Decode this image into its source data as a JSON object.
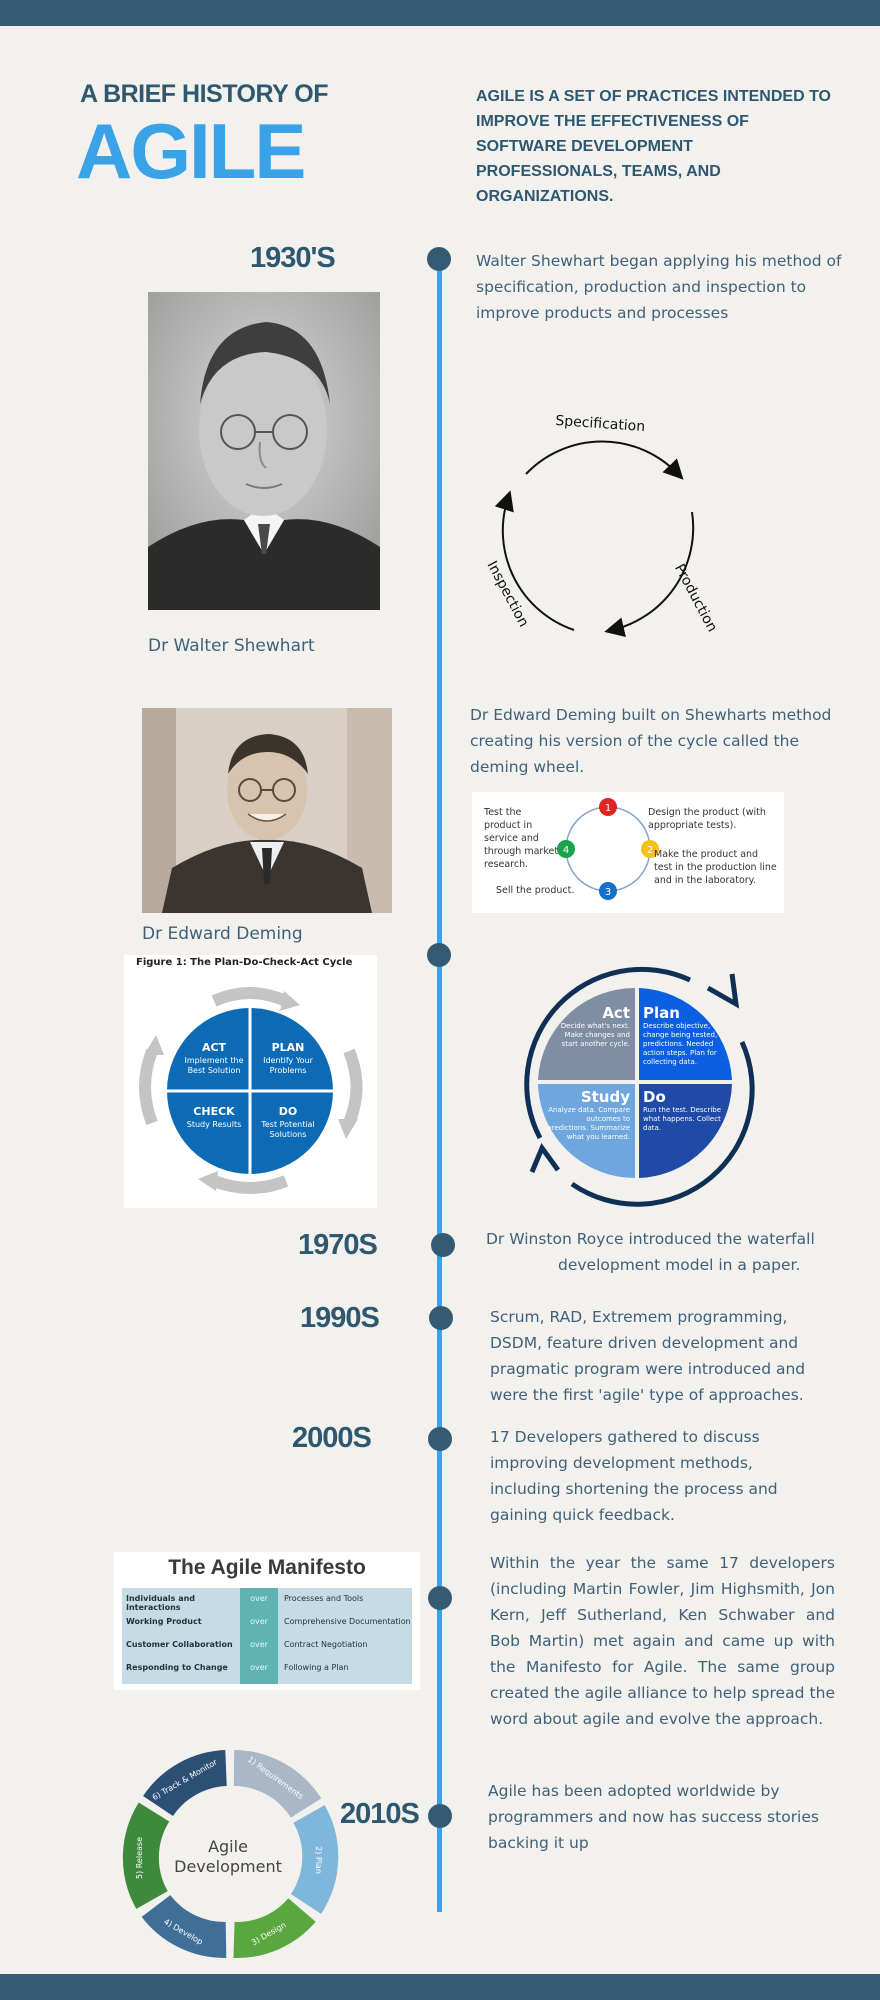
{
  "header": {
    "pre_title": "A BRIEF HISTORY OF",
    "title": "AGILE",
    "intro": "AGILE IS A SET OF PRACTICES INTENDED TO IMPROVE THE EFFECTIVENESS OF SOFTWARE DEVELOPMENT PROFESSIONALS, TEAMS, AND ORGANIZATIONS."
  },
  "timeline": {
    "e1930": {
      "year": "1930'S",
      "text": "Walter Shewhart began applying his method of specification, production and inspection to improve products and processes",
      "caption": "Dr Walter Shewhart",
      "cycle": {
        "spec": "Specification",
        "prod": "Production",
        "insp": "Inspection"
      }
    },
    "deming": {
      "text": "Dr Edward Deming built on Shewharts method creating his version of the cycle called the deming wheel.",
      "caption": "Dr Edward Deming",
      "wheel": {
        "s1": "Design the product (with appropriate tests).",
        "s2": "Make the product and test in the production line and in the laboratory.",
        "s3": "Sell the product.",
        "s4": "Test the product in service and through market research.",
        "n1": "1",
        "n2": "2",
        "n3": "3",
        "n4": "4"
      }
    },
    "pdca_left": {
      "figure_title": "Figure 1: The Plan-Do-Check-Act Cycle",
      "act": "ACT",
      "act_sub": "Implement the Best Solution",
      "plan": "PLAN",
      "plan_sub": "Identify Your Problems",
      "check": "CHECK",
      "check_sub": "Study Results",
      "do": "DO",
      "do_sub": "Test Potential Solutions"
    },
    "pdsa_right": {
      "act": "Act",
      "act_desc": "Decide what's next. Make changes and start another cycle.",
      "plan": "Plan",
      "plan_desc": "Describe objective, change being tested, predictions. Needed action steps. Plan for collecting data.",
      "study": "Study",
      "study_desc": "Analyze data. Compare outcomes to predictions. Summarize what you learned.",
      "do": "Do",
      "do_desc": "Run the test. Describe what happens. Collect data."
    },
    "e1970": {
      "year": "1970S",
      "text_1": "Dr Winston Royce introduced the waterfall",
      "text_2": "development model in a paper."
    },
    "e1990": {
      "year": "1990S",
      "text": "Scrum, RAD, Extremem programming, DSDM, feature driven development and pragmatic program were introduced and were the first 'agile' type of approaches."
    },
    "e2000": {
      "year": "2000S",
      "text": "17 Developers gathered to discuss improving development methods, including shortening the process and gaining quick feedback."
    },
    "manifesto": {
      "title": "The Agile Manifesto",
      "over": "over",
      "rows": [
        {
          "left": "Individuals and Interactions",
          "right": "Processes and Tools"
        },
        {
          "left": "Working Product",
          "right": "Comprehensive Documentation"
        },
        {
          "left": "Customer Collaboration",
          "right": "Contract Negotiation"
        },
        {
          "left": "Responding to Change",
          "right": "Following a Plan"
        }
      ],
      "text": "Within the year the same 17 developers (including Martin Fowler, Jim Highsmith, Jon Kern, Jeff Sutherland, Ken Schwaber and Bob Martin) met again and came up with the Manifesto for Agile. The same group created the agile alliance to help spread the word about agile and evolve the approach."
    },
    "e2010": {
      "year": "2010S",
      "text": "Agile has been adopted worldwide by programmers and now has success stories backing it up",
      "cycle": {
        "center_1": "Agile",
        "center_2": "Development",
        "s1": "1) Requirements",
        "s2": "2) Plan",
        "s3": "3) Design",
        "s4": "4) Develop",
        "s5": "5) Release",
        "s6": "6) Track & Monitor"
      }
    }
  },
  "colors": {
    "navy": "#355a72",
    "blue": "#3aa3e8",
    "text": "#3f6078",
    "background": "#f2f1ee"
  }
}
